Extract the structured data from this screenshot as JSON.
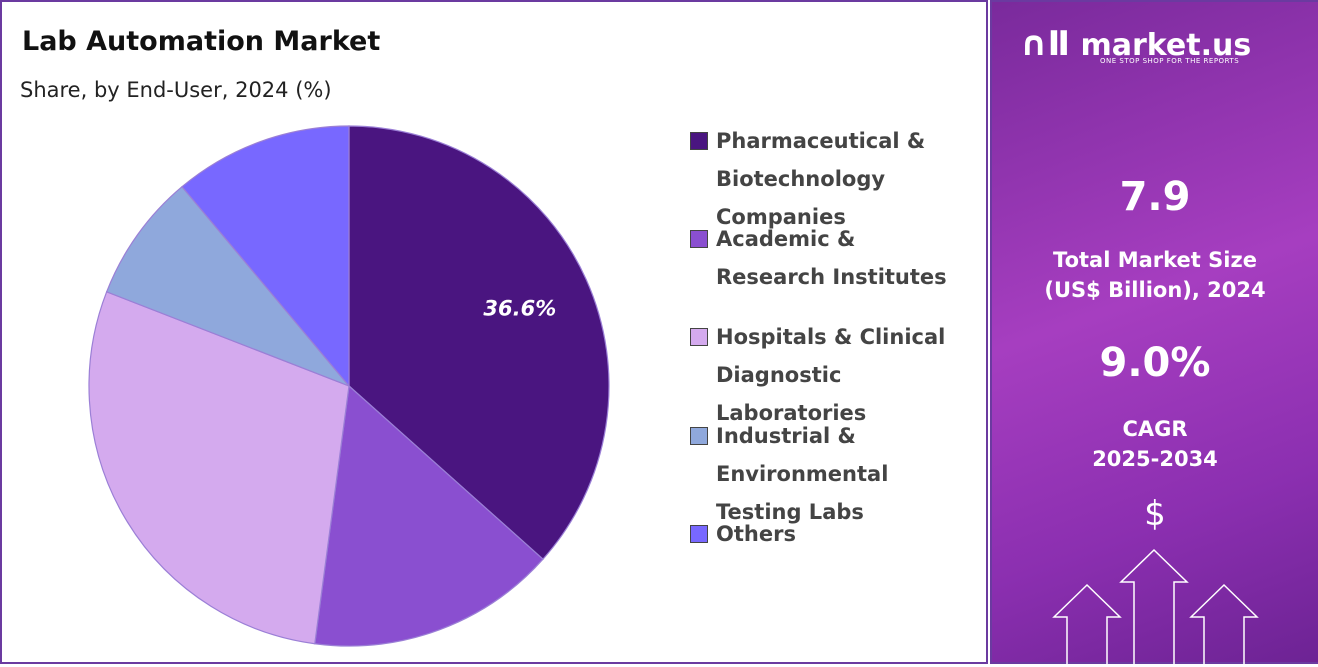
{
  "chart_data": {
    "type": "pie",
    "title": "Lab Automation Market",
    "subtitle": "Share, by End-User, 2024 (%)",
    "categories": [
      "Pharmaceutical & Biotechnology Companies",
      "Academic & Research Institutes",
      "Hospitals & Clinical Diagnostic Laboratories",
      "Industrial & Environmental Testing Labs",
      "Others"
    ],
    "values": [
      36.6,
      15.5,
      28.8,
      8.0,
      11.1
    ],
    "value_labels": [
      "36.6%",
      null,
      null,
      null,
      null
    ],
    "colors": [
      "#4a1580",
      "#8a4fd0",
      "#d4aaee",
      "#8fa8dc",
      "#7868ff"
    ]
  },
  "panel": {
    "logo": "market.us",
    "tagline": "ONE STOP SHOP FOR THE REPORTS",
    "market_size": "7.9",
    "market_size_label": "Total Market Size (US$ Billion), 2024",
    "cagr": "9.0%",
    "cagr_label": "CAGR 2025-2034",
    "currency_symbol": "$"
  }
}
